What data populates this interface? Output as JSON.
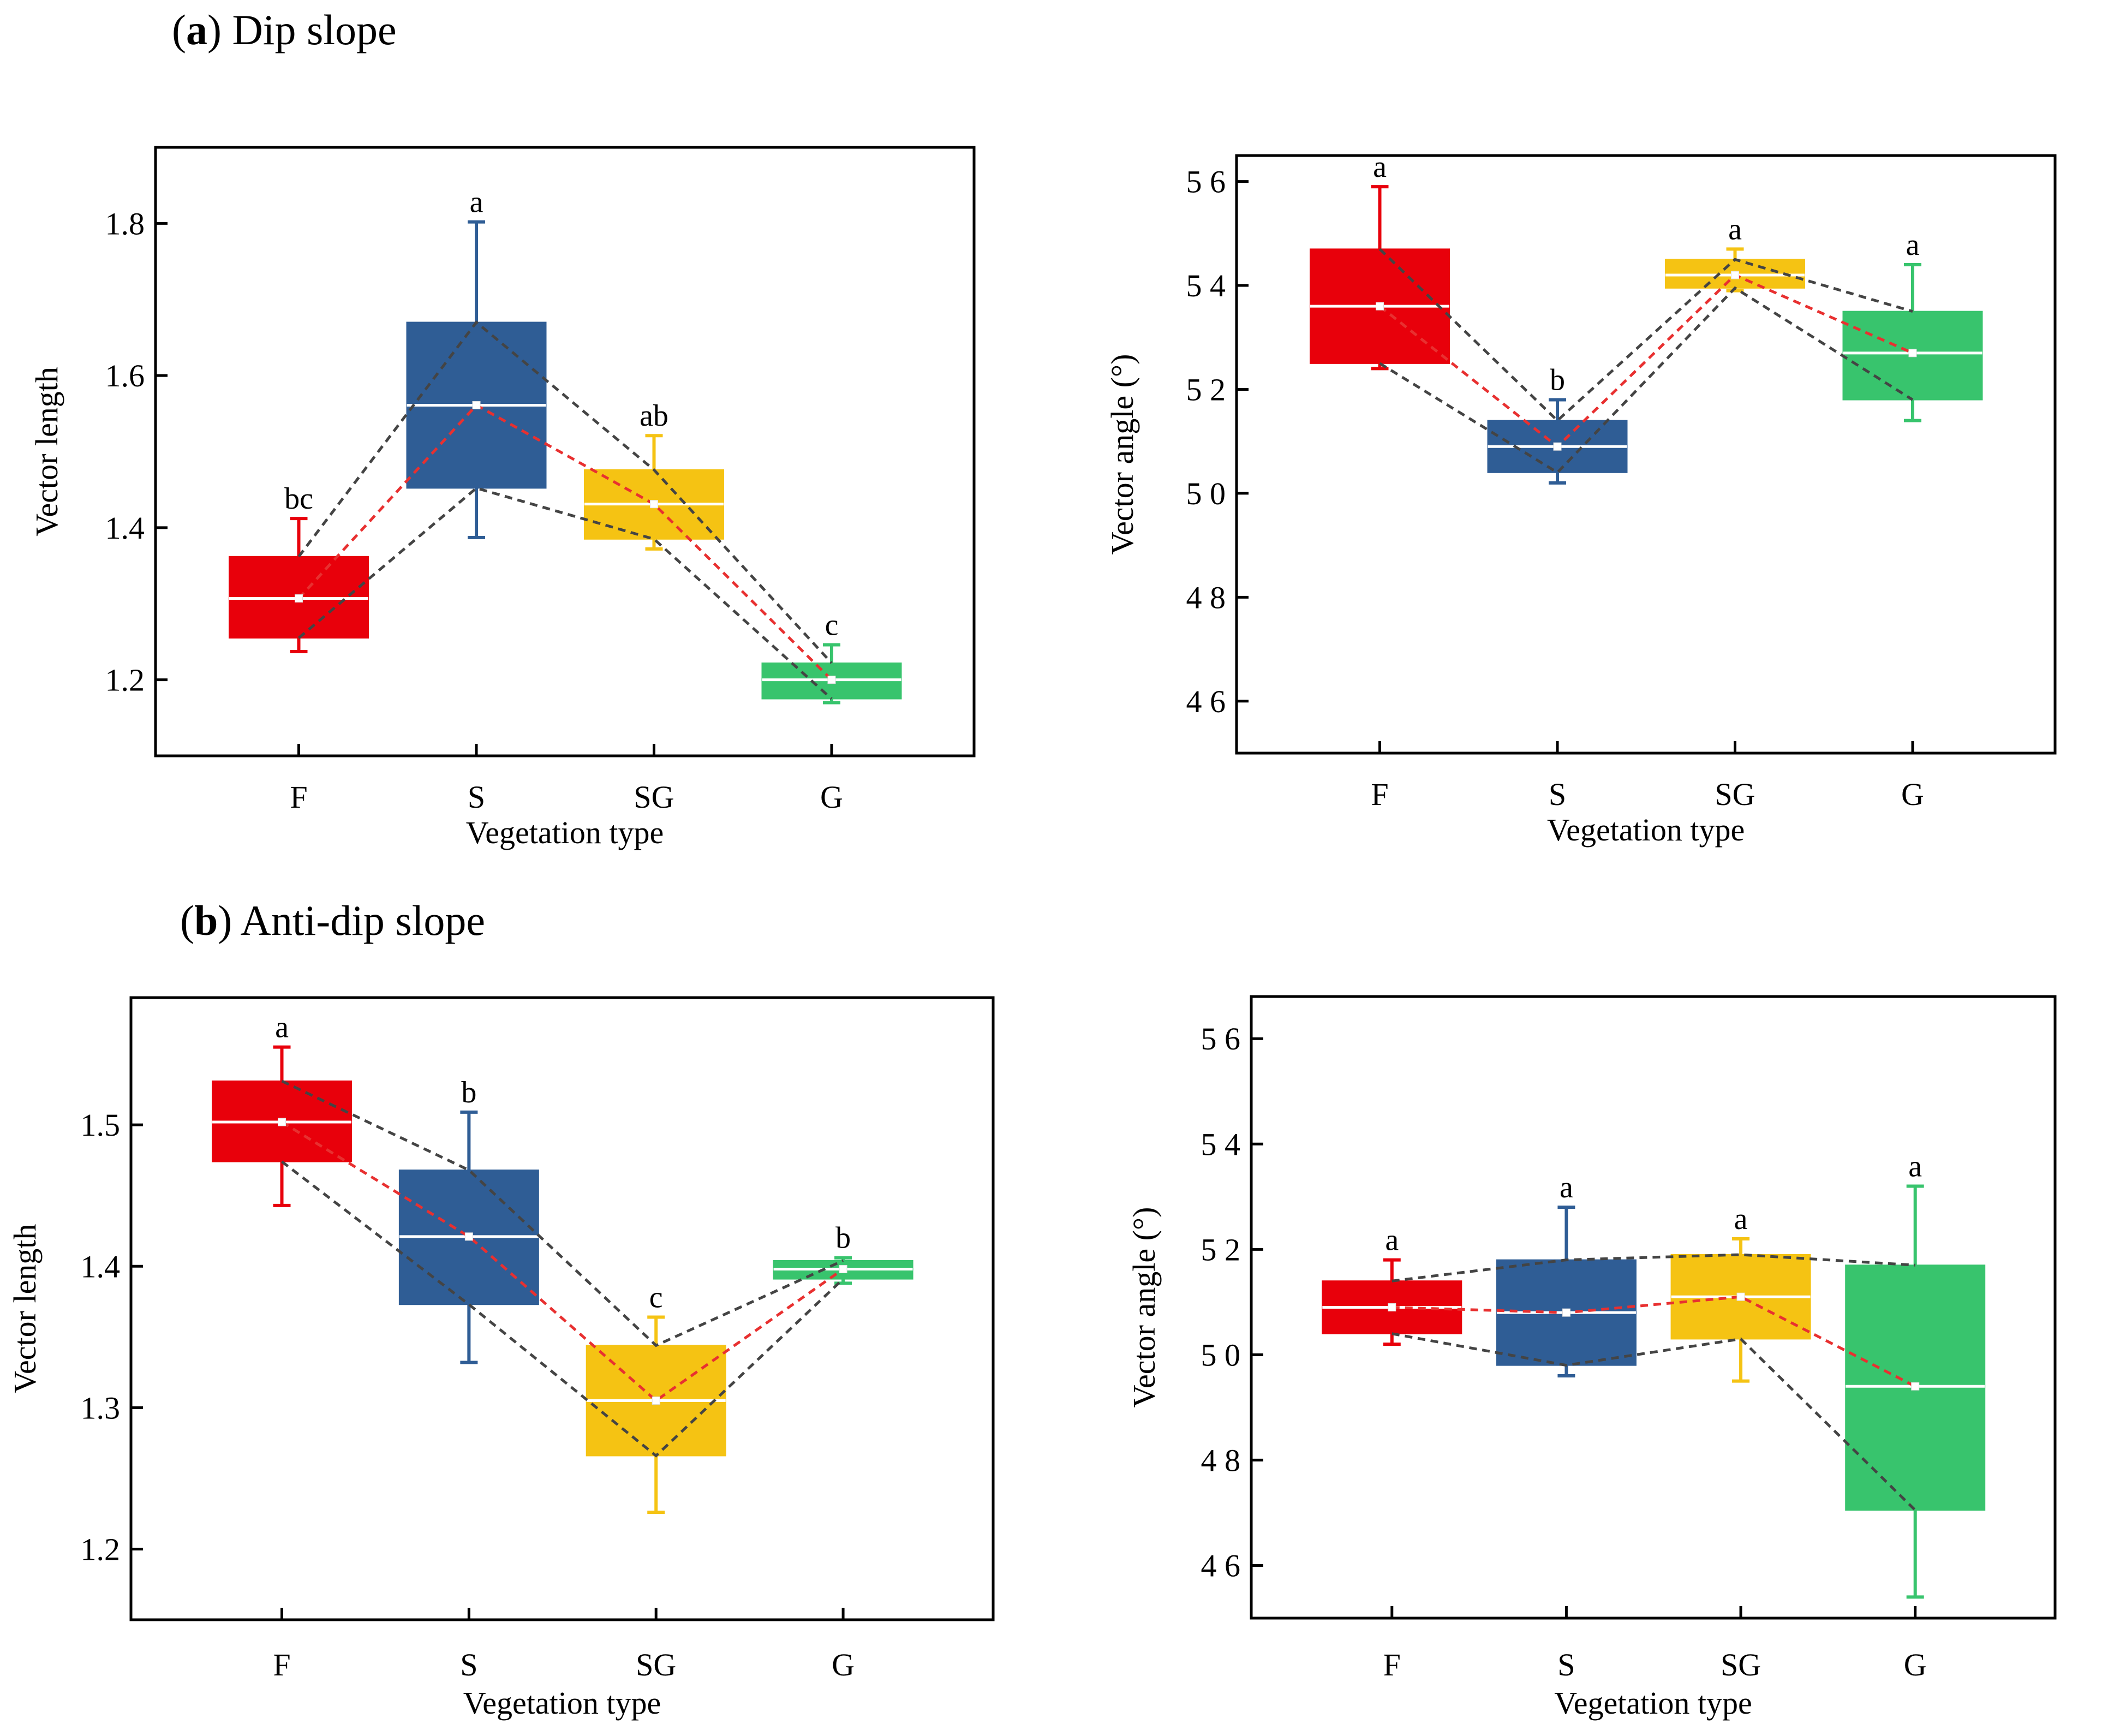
{
  "figure": {
    "panel_a": {
      "letter": "a",
      "title": "Dip slope"
    },
    "panel_b": {
      "letter": "b",
      "title": "Anti-dip slope"
    }
  },
  "colors": {
    "F": "#e8000b",
    "S": "#2f5d95",
    "SG": "#f5c313",
    "G": "#38c46d",
    "mean_line": "#e83030",
    "range_line": "#444444"
  },
  "chart_data": [
    {
      "id": "a-length",
      "type": "box",
      "panel": "a",
      "xlabel": "Vegetation type",
      "ylabel": "Vector length",
      "ylim": [
        1.1,
        1.9
      ],
      "yticks": [
        1.2,
        1.4,
        1.6,
        1.8
      ],
      "ytick_labels": [
        "1.2",
        "1.4",
        "1.6",
        "1.8"
      ],
      "categories": [
        "F",
        "S",
        "SG",
        "G"
      ],
      "boxes": [
        {
          "cat": "F",
          "min": 1.237,
          "q1": 1.255,
          "median": 1.307,
          "q3": 1.362,
          "max": 1.412,
          "mean": 1.307,
          "letter": "bc"
        },
        {
          "cat": "S",
          "min": 1.387,
          "q1": 1.452,
          "median": 1.561,
          "q3": 1.67,
          "max": 1.802,
          "mean": 1.561,
          "letter": "a"
        },
        {
          "cat": "SG",
          "min": 1.372,
          "q1": 1.385,
          "median": 1.431,
          "q3": 1.476,
          "max": 1.521,
          "mean": 1.431,
          "letter": "ab"
        },
        {
          "cat": "G",
          "min": 1.17,
          "q1": 1.175,
          "median": 1.2,
          "q3": 1.222,
          "max": 1.246,
          "mean": 1.2,
          "letter": "c"
        }
      ]
    },
    {
      "id": "a-angle",
      "type": "box",
      "panel": "a",
      "xlabel": "Vegetation type",
      "ylabel": "Vector angle (°)",
      "ylim": [
        45,
        56.5
      ],
      "yticks": [
        46,
        48,
        50,
        52,
        54,
        56
      ],
      "ytick_labels": [
        "4 6",
        "4 8",
        "5 0",
        "5 2",
        "5 4",
        "5 6"
      ],
      "categories": [
        "F",
        "S",
        "SG",
        "G"
      ],
      "boxes": [
        {
          "cat": "F",
          "min": 52.4,
          "q1": 52.5,
          "median": 53.6,
          "q3": 54.7,
          "max": 55.9,
          "mean": 53.6,
          "letter": "a"
        },
        {
          "cat": "S",
          "min": 50.2,
          "q1": 50.4,
          "median": 50.9,
          "q3": 51.4,
          "max": 51.8,
          "mean": 50.9,
          "letter": "b"
        },
        {
          "cat": "SG",
          "min": 53.9,
          "q1": 53.95,
          "median": 54.2,
          "q3": 54.5,
          "max": 54.7,
          "mean": 54.2,
          "letter": "a"
        },
        {
          "cat": "G",
          "min": 51.4,
          "q1": 51.8,
          "median": 52.7,
          "q3": 53.5,
          "max": 54.4,
          "mean": 52.7,
          "letter": "a"
        }
      ]
    },
    {
      "id": "b-length",
      "type": "box",
      "panel": "b",
      "xlabel": "Vegetation type",
      "ylabel": "Vector length",
      "ylim": [
        1.15,
        1.59
      ],
      "yticks": [
        1.2,
        1.3,
        1.4,
        1.5
      ],
      "ytick_labels": [
        "1.2",
        "1.3",
        "1.4",
        "1.5"
      ],
      "categories": [
        "F",
        "S",
        "SG",
        "G"
      ],
      "boxes": [
        {
          "cat": "F",
          "min": 1.443,
          "q1": 1.474,
          "median": 1.502,
          "q3": 1.531,
          "max": 1.555,
          "mean": 1.502,
          "letter": "a"
        },
        {
          "cat": "S",
          "min": 1.332,
          "q1": 1.373,
          "median": 1.421,
          "q3": 1.468,
          "max": 1.509,
          "mean": 1.421,
          "letter": "b"
        },
        {
          "cat": "SG",
          "min": 1.226,
          "q1": 1.266,
          "median": 1.305,
          "q3": 1.344,
          "max": 1.364,
          "mean": 1.305,
          "letter": "c"
        },
        {
          "cat": "G",
          "min": 1.388,
          "q1": 1.391,
          "median": 1.398,
          "q3": 1.404,
          "max": 1.406,
          "mean": 1.398,
          "letter": "b"
        }
      ]
    },
    {
      "id": "b-angle",
      "type": "box",
      "panel": "b",
      "xlabel": "Vegetation type",
      "ylabel": "Vector angle (°)",
      "ylim": [
        45,
        56.8
      ],
      "yticks": [
        46,
        48,
        50,
        52,
        54,
        56
      ],
      "ytick_labels": [
        "4 6",
        "4 8",
        "5 0",
        "5 2",
        "5 4",
        "5 6"
      ],
      "categories": [
        "F",
        "S",
        "SG",
        "G"
      ],
      "boxes": [
        {
          "cat": "F",
          "min": 50.2,
          "q1": 50.4,
          "median": 50.9,
          "q3": 51.4,
          "max": 51.8,
          "mean": 50.9,
          "letter": "a"
        },
        {
          "cat": "S",
          "min": 49.6,
          "q1": 49.8,
          "median": 50.8,
          "q3": 51.8,
          "max": 52.8,
          "mean": 50.8,
          "letter": "a"
        },
        {
          "cat": "SG",
          "min": 49.5,
          "q1": 50.3,
          "median": 51.1,
          "q3": 51.9,
          "max": 52.2,
          "mean": 51.1,
          "letter": "a"
        },
        {
          "cat": "G",
          "min": 45.4,
          "q1": 47.05,
          "median": 49.4,
          "q3": 51.7,
          "max": 53.2,
          "mean": 49.4,
          "letter": "a"
        }
      ]
    }
  ]
}
